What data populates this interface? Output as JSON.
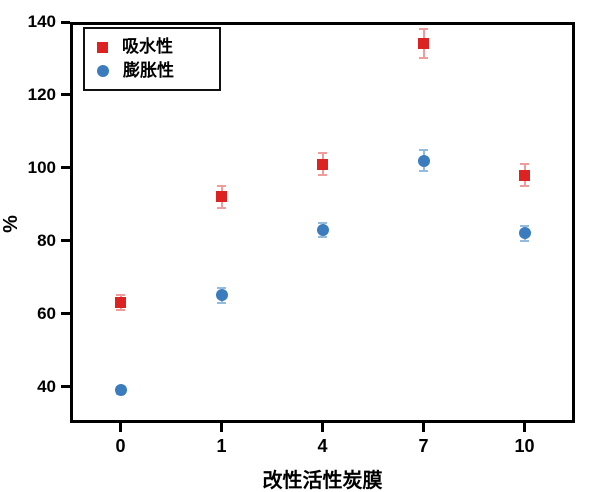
{
  "chart_data": {
    "type": "scatter",
    "categories": [
      "0",
      "1",
      "4",
      "7",
      "10"
    ],
    "series": [
      {
        "name": "吸水性",
        "marker": "square",
        "color": "#dd2222",
        "error_color": "#f19c9c",
        "values": [
          63,
          92,
          101,
          134,
          98
        ],
        "errors": [
          2,
          3,
          3,
          4,
          3
        ]
      },
      {
        "name": "膨胀性",
        "marker": "circle",
        "color": "#3b7cbf",
        "error_color": "#92bbde",
        "values": [
          39,
          65,
          83,
          102,
          82
        ],
        "errors": [
          1,
          2,
          2,
          3,
          2
        ]
      }
    ],
    "title": "",
    "xlabel": "改性活性炭膜",
    "ylabel": "%",
    "ylim": [
      30,
      140
    ],
    "yticks": [
      40,
      60,
      80,
      100,
      120,
      140
    ],
    "legend_position": "upper-left",
    "grid": false,
    "frame_color": "#000000",
    "background_color": "#ffffff"
  }
}
